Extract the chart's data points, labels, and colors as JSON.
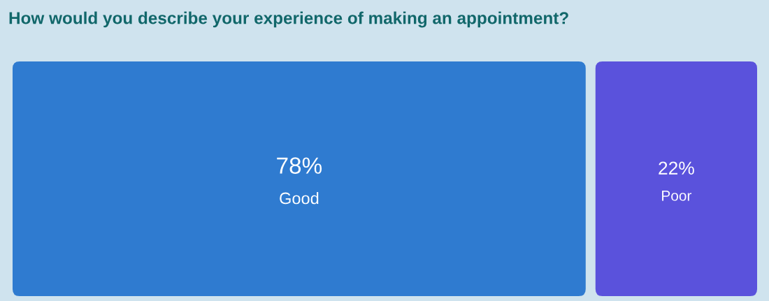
{
  "chart_data": {
    "type": "other",
    "title": "How would you describe your experience of making an appointment?",
    "categories": [
      "Good",
      "Poor"
    ],
    "values": [
      78,
      22
    ],
    "value_labels": [
      "78%",
      "22%"
    ],
    "colors": [
      "#2f7bd0",
      "#5a52dc"
    ]
  }
}
